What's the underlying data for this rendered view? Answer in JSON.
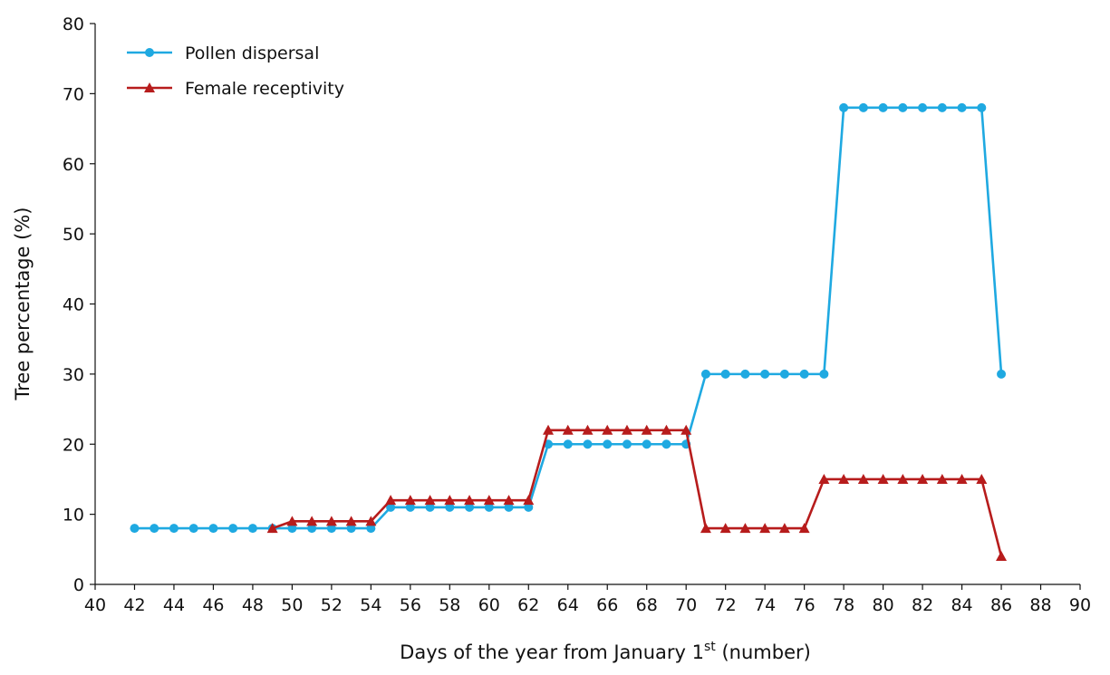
{
  "chart_data": {
    "type": "line",
    "title": "",
    "xlabel_prefix": "Days of the year from January 1",
    "xlabel_superscript": "st",
    "xlabel_suffix": " (number)",
    "ylabel": "Tree percentage (%)",
    "xlim": [
      40,
      90
    ],
    "ylim": [
      0,
      80
    ],
    "xticks": [
      40,
      42,
      44,
      46,
      48,
      50,
      52,
      54,
      56,
      58,
      60,
      62,
      64,
      66,
      68,
      70,
      72,
      74,
      76,
      78,
      80,
      82,
      84,
      86,
      88,
      90
    ],
    "yticks": [
      0,
      10,
      20,
      30,
      40,
      50,
      60,
      70,
      80
    ],
    "grid": false,
    "legend_position": "top-left",
    "series": [
      {
        "name": "Pollen dispersal",
        "color": "#1fa9e1",
        "marker": "circle",
        "x": [
          42,
          43,
          44,
          45,
          46,
          47,
          48,
          49,
          50,
          51,
          52,
          53,
          54,
          55,
          56,
          57,
          58,
          59,
          60,
          61,
          62,
          63,
          64,
          65,
          66,
          67,
          68,
          69,
          70,
          71,
          72,
          73,
          74,
          75,
          76,
          77,
          78,
          79,
          80,
          81,
          82,
          83,
          84,
          85,
          86
        ],
        "y": [
          8,
          8,
          8,
          8,
          8,
          8,
          8,
          8,
          8,
          8,
          8,
          8,
          8,
          11,
          11,
          11,
          11,
          11,
          11,
          11,
          11,
          20,
          20,
          20,
          20,
          20,
          20,
          20,
          20,
          30,
          30,
          30,
          30,
          30,
          30,
          30,
          68,
          68,
          68,
          68,
          68,
          68,
          68,
          68,
          30
        ]
      },
      {
        "name": "Female receptivity",
        "color": "#b71c1c",
        "marker": "triangle",
        "x": [
          49,
          50,
          51,
          52,
          53,
          54,
          55,
          56,
          57,
          58,
          59,
          60,
          61,
          62,
          63,
          64,
          65,
          66,
          67,
          68,
          69,
          70,
          71,
          72,
          73,
          74,
          75,
          76,
          77,
          78,
          79,
          80,
          81,
          82,
          83,
          84,
          85,
          86
        ],
        "y": [
          8,
          9,
          9,
          9,
          9,
          9,
          12,
          12,
          12,
          12,
          12,
          12,
          12,
          12,
          22,
          22,
          22,
          22,
          22,
          22,
          22,
          22,
          8,
          8,
          8,
          8,
          8,
          8,
          15,
          15,
          15,
          15,
          15,
          15,
          15,
          15,
          15,
          4
        ]
      }
    ]
  }
}
